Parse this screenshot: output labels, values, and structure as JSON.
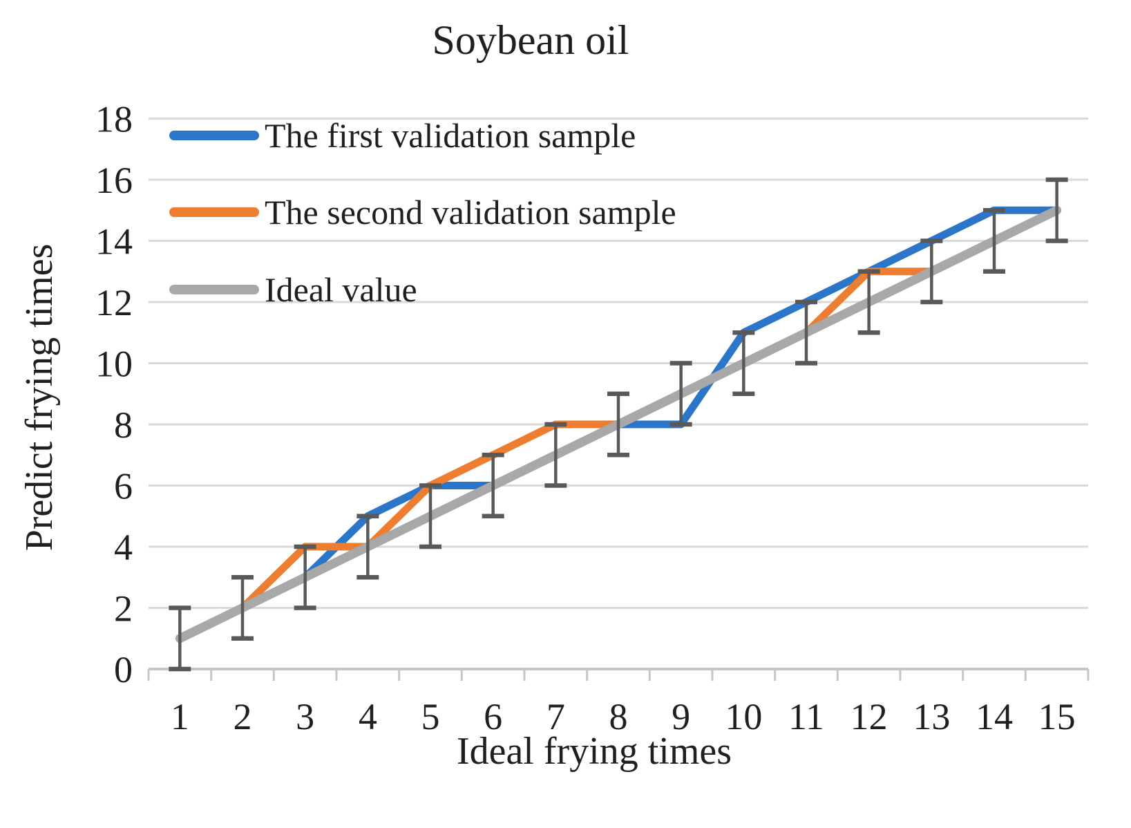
{
  "title": "Soybean oil",
  "axes": {
    "x_label": "Ideal frying times",
    "y_label": "Predict frying times",
    "x_ticks": [
      1,
      2,
      3,
      4,
      5,
      6,
      7,
      8,
      9,
      10,
      11,
      12,
      13,
      14,
      15
    ],
    "y_ticks": [
      0,
      2,
      4,
      6,
      8,
      10,
      12,
      14,
      16,
      18
    ]
  },
  "legend": {
    "position": "top-left-inside",
    "items": [
      {
        "label": "The first validation sample"
      },
      {
        "label": "The second validation sample"
      },
      {
        "label": "Ideal value"
      }
    ]
  },
  "colors": {
    "series_first": "#2B76C8",
    "series_second": "#ED7D31",
    "series_ideal": "#A8A8A8",
    "error_bar": "#595959",
    "gridline": "#D9D9D9",
    "axis_line": "#C6C6C6",
    "text": "#1f1f1f"
  },
  "chart_data": {
    "type": "line",
    "title": "Soybean oil",
    "xlabel": "Ideal frying times",
    "ylabel": "Predict frying times",
    "x": [
      1,
      2,
      3,
      4,
      5,
      6,
      7,
      8,
      9,
      10,
      11,
      12,
      13,
      14,
      15
    ],
    "series": [
      {
        "name": "The first validation sample",
        "color_key": "series_first",
        "line_width": 11,
        "values": [
          1,
          2,
          3,
          5,
          6,
          6,
          7,
          8,
          8,
          11,
          12,
          13,
          14,
          15,
          15
        ]
      },
      {
        "name": "The second validation sample",
        "color_key": "series_second",
        "line_width": 11,
        "values": [
          1,
          2,
          4,
          4,
          6,
          7,
          8,
          8,
          9,
          10,
          11,
          13,
          13,
          14,
          15
        ]
      },
      {
        "name": "Ideal value",
        "color_key": "series_ideal",
        "line_width": 13,
        "values": [
          1,
          2,
          3,
          4,
          5,
          6,
          7,
          8,
          9,
          10,
          11,
          12,
          13,
          14,
          15
        ],
        "error_bars": {
          "plus": 1,
          "minus": 1
        }
      }
    ],
    "ylim": [
      0,
      18
    ],
    "y_tick_step": 2,
    "grid": "horizontal",
    "legend_position": "top-left-inside"
  }
}
